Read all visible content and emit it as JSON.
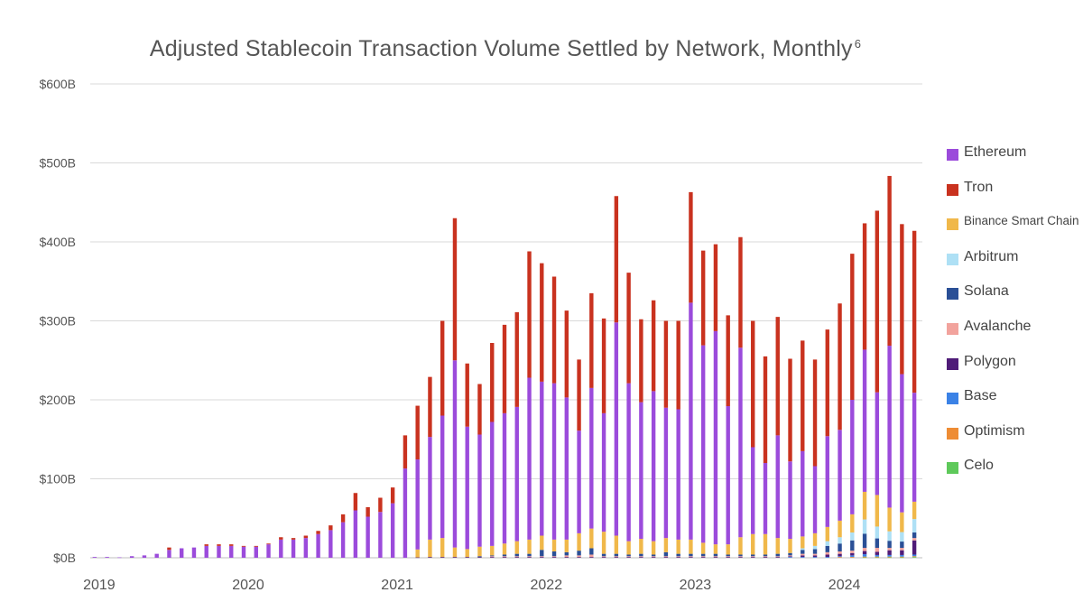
{
  "title": "Adjusted Stablecoin Transaction Volume Settled by Network, Monthly",
  "title_footnote": "6",
  "colors": {
    "Ethereum": "#9b4bdb",
    "Tron": "#c9321f",
    "Binance Smart Chain": "#f0b84a",
    "Arbitrum": "#aee0f5",
    "Solana": "#2a4f96",
    "Avalanche": "#f2a39d",
    "Polygon": "#4f1c78",
    "Base": "#3b82e6",
    "Optimism": "#ee8c34",
    "Celo": "#5ec95a"
  },
  "legend": [
    "Ethereum",
    "Tron",
    "Binance Smart Chain",
    "Arbitrum",
    "Solana",
    "Avalanche",
    "Polygon",
    "Base",
    "Optimism",
    "Celo"
  ],
  "chart_data": {
    "type": "bar",
    "stacked": true,
    "title": "Adjusted Stablecoin Transaction Volume Settled by Network, Monthly",
    "ylim": [
      0,
      600
    ],
    "yticks": [
      "$0B",
      "$100B",
      "$200B",
      "$300B",
      "$400B",
      "$500B",
      "$600B"
    ],
    "xticks": [
      "2019",
      "2020",
      "2021",
      "2022",
      "2023",
      "2024"
    ],
    "grid": true,
    "legend_position": "right",
    "units": "billions USD",
    "categories": [
      "2019-01",
      "2019-02",
      "2019-03",
      "2019-04",
      "2019-05",
      "2019-06",
      "2019-07",
      "2019-08",
      "2019-09",
      "2019-10",
      "2019-11",
      "2019-12",
      "2020-01",
      "2020-02",
      "2020-03",
      "2020-04",
      "2020-05",
      "2020-06",
      "2020-07",
      "2020-08",
      "2020-09",
      "2020-10",
      "2020-11",
      "2020-12",
      "2021-01",
      "2021-02",
      "2021-03",
      "2021-04",
      "2021-05",
      "2021-06",
      "2021-07",
      "2021-08",
      "2021-09",
      "2021-10",
      "2021-11",
      "2021-12",
      "2022-01",
      "2022-02",
      "2022-03",
      "2022-04",
      "2022-05",
      "2022-06",
      "2022-07",
      "2022-08",
      "2022-09",
      "2022-10",
      "2022-11",
      "2022-12",
      "2023-01",
      "2023-02",
      "2023-03",
      "2023-04",
      "2023-05",
      "2023-06",
      "2023-07",
      "2023-08",
      "2023-09",
      "2023-10",
      "2023-11",
      "2023-12",
      "2024-01",
      "2024-02",
      "2024-03",
      "2024-04",
      "2024-05",
      "2024-06",
      "2024-07"
    ],
    "series": [
      {
        "name": "Celo",
        "values": [
          0,
          0,
          0,
          0,
          0,
          0,
          0,
          0,
          0,
          0,
          0,
          0,
          0,
          0,
          0,
          0,
          0,
          0,
          0,
          0,
          0,
          0,
          0,
          0,
          0,
          0,
          0,
          0,
          0,
          0,
          0,
          0,
          0,
          0,
          0,
          0,
          0,
          0,
          0,
          0,
          0,
          0,
          0,
          0,
          0,
          0,
          0,
          0,
          0,
          0,
          0,
          0,
          0,
          0,
          0,
          0,
          0,
          0,
          0,
          0,
          0,
          0,
          0.5,
          0.5,
          0.5,
          0.5,
          1
        ]
      },
      {
        "name": "Optimism",
        "values": [
          0,
          0,
          0,
          0,
          0,
          0,
          0,
          0,
          0,
          0,
          0,
          0,
          0,
          0,
          0,
          0,
          0,
          0,
          0,
          0,
          0,
          0,
          0,
          0,
          0,
          0,
          0,
          0,
          0,
          0,
          0,
          0,
          0,
          0,
          0,
          0,
          0,
          0,
          0,
          0,
          0,
          0,
          0,
          0,
          0,
          0,
          0,
          0,
          0,
          0,
          0,
          0,
          0,
          0,
          0,
          0,
          0,
          0,
          0,
          0,
          1,
          1,
          1,
          1,
          1,
          1,
          1
        ]
      },
      {
        "name": "Base",
        "values": [
          0,
          0,
          0,
          0,
          0,
          0,
          0,
          0,
          0,
          0,
          0,
          0,
          0,
          0,
          0,
          0,
          0,
          0,
          0,
          0,
          0,
          0,
          0,
          0,
          0,
          0,
          0,
          0,
          0,
          0,
          0,
          0,
          0,
          0,
          0,
          0,
          0,
          0,
          0,
          0,
          0,
          0,
          0,
          0,
          0,
          0,
          0,
          0,
          0,
          0,
          0,
          0,
          0,
          0,
          0,
          0,
          1,
          1,
          1,
          1,
          1,
          2,
          3,
          2,
          2,
          2,
          2
        ]
      },
      {
        "name": "Polygon",
        "values": [
          0,
          0,
          0,
          0,
          0,
          0,
          0,
          0,
          0,
          0,
          0,
          0,
          0,
          0,
          0,
          0,
          0,
          0,
          0,
          0,
          0,
          0,
          0,
          0,
          0,
          0,
          0.5,
          1,
          1,
          1,
          1,
          1,
          1,
          1,
          1,
          1,
          1,
          1,
          1,
          1,
          1,
          1,
          1,
          1,
          1,
          1,
          1,
          1,
          1,
          1,
          1,
          1,
          1,
          1,
          1,
          1,
          1,
          2,
          2,
          3,
          3,
          3,
          4,
          4,
          6,
          6,
          18
        ]
      },
      {
        "name": "Avalanche",
        "values": [
          0,
          0,
          0,
          0,
          0,
          0,
          0,
          0,
          0,
          0,
          0,
          0,
          0,
          0,
          0,
          0,
          0,
          0,
          0,
          0,
          0,
          0,
          0,
          0,
          0,
          0,
          0,
          0,
          0,
          0,
          0,
          0,
          1,
          1,
          1,
          1,
          1,
          1,
          2,
          2,
          3,
          1,
          1,
          1,
          1,
          1,
          1,
          1,
          1,
          1,
          1,
          1,
          1,
          1,
          1,
          1,
          1,
          2,
          2,
          3,
          3,
          3,
          4,
          5,
          3,
          3,
          3
        ]
      },
      {
        "name": "Solana",
        "values": [
          0,
          0,
          0,
          0,
          0,
          0,
          0,
          0,
          0,
          0,
          0,
          0,
          0,
          0,
          0,
          0,
          0,
          0,
          0,
          0,
          0,
          0,
          0,
          0,
          0,
          0,
          0,
          0,
          0,
          0,
          0,
          1,
          1,
          2,
          3,
          3,
          8,
          6,
          4,
          6,
          8,
          3,
          3,
          2,
          3,
          2,
          5,
          3,
          3,
          3,
          3,
          2,
          2,
          2,
          2,
          3,
          3,
          5,
          6,
          8,
          10,
          13,
          18,
          12,
          9,
          8,
          7
        ]
      },
      {
        "name": "Arbitrum",
        "values": [
          0,
          0,
          0,
          0,
          0,
          0,
          0,
          0,
          0,
          0,
          0,
          0,
          0,
          0,
          0,
          0,
          0,
          0,
          0,
          0,
          0,
          0,
          0,
          0,
          0,
          0,
          0,
          0,
          0,
          0,
          0,
          0,
          0,
          0,
          0,
          0,
          0,
          0,
          0,
          0,
          0,
          0,
          0,
          0,
          0,
          0,
          0,
          0,
          0,
          0,
          0,
          0,
          0,
          0,
          0,
          0,
          0,
          2,
          4,
          6,
          8,
          10,
          18,
          15,
          12,
          12,
          17
        ]
      },
      {
        "name": "Binance Smart Chain",
        "values": [
          0,
          0,
          0,
          0,
          0,
          0,
          0,
          0,
          0,
          0,
          0,
          0,
          0,
          0,
          0,
          0,
          0,
          0,
          0,
          0,
          0,
          0,
          0,
          0,
          0,
          0,
          10,
          22,
          24,
          12,
          10,
          12,
          12,
          14,
          16,
          18,
          18,
          15,
          16,
          22,
          25,
          28,
          23,
          17,
          19,
          17,
          18,
          18,
          18,
          14,
          12,
          13,
          22,
          26,
          26,
          20,
          18,
          15,
          16,
          18,
          21,
          23,
          35,
          40,
          30,
          25,
          22
        ]
      },
      {
        "name": "Ethereum",
        "values": [
          1,
          1,
          0.5,
          2,
          3,
          5,
          10,
          12,
          13,
          15,
          15,
          15,
          14,
          14,
          17,
          23,
          23,
          25,
          30,
          35,
          45,
          60,
          52,
          58,
          69,
          113,
          114,
          130,
          155,
          237,
          155,
          142,
          157,
          165,
          170,
          205,
          195,
          198,
          180,
          130,
          178,
          150,
          270,
          200,
          173,
          190,
          165,
          165,
          300,
          250,
          270,
          175,
          240,
          110,
          90,
          130,
          98,
          108,
          85,
          115,
          115,
          145,
          180,
          130,
          205,
          175,
          138
        ]
      },
      {
        "name": "Tron",
        "values": [
          0,
          0,
          0,
          0,
          0,
          0,
          3,
          0,
          0,
          2,
          2,
          2,
          1,
          1,
          1,
          3,
          2,
          3,
          4,
          6,
          10,
          22,
          12,
          18,
          20,
          42,
          68,
          76,
          120,
          180,
          80,
          64,
          100,
          112,
          120,
          160,
          150,
          135,
          110,
          90,
          120,
          120,
          160,
          140,
          105,
          115,
          110,
          112,
          140,
          120,
          110,
          115,
          140,
          160,
          135,
          150,
          130,
          140,
          135,
          135,
          160,
          185,
          160,
          230,
          215,
          190,
          205
        ]
      }
    ]
  }
}
